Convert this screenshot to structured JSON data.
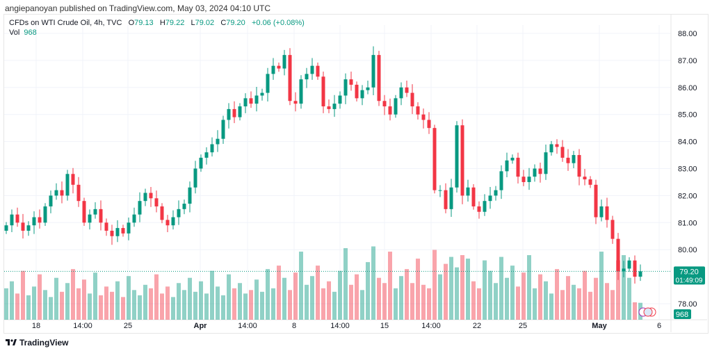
{
  "header": {
    "published": "angiepanoyan published on TradingView.com, May 03, 2024 04:10 UTC"
  },
  "legend": {
    "symbol": "CFDs on WTI Crude Oil, 4h, TVC",
    "o_label": "O",
    "o": "79.13",
    "h_label": "H",
    "h": "79.22",
    "l_label": "L",
    "l": "79.02",
    "c_label": "C",
    "c": "79.20",
    "change": "+0.06 (+0.08%)",
    "vol_label": "Vol",
    "vol": "968"
  },
  "price_tag": {
    "price": "79.20",
    "countdown": "01:49:09"
  },
  "vol_tag": "968",
  "footer": {
    "brand": "TradingView"
  },
  "colors": {
    "up": "#089981",
    "down": "#f23645"
  },
  "chart_data": {
    "type": "candlestick",
    "title": "CFDs on WTI Crude Oil, 4h, TVC",
    "ylim": [
      77.7,
      88.3
    ],
    "y_ticks": [
      "78.00",
      "80.00",
      "81.00",
      "82.00",
      "83.00",
      "84.00",
      "85.00",
      "86.00",
      "87.00",
      "88.00"
    ],
    "x_ticks": [
      "18",
      "14:00",
      "25",
      "Apr",
      "14:00",
      "8",
      "14:00",
      "15",
      "14:00",
      "22",
      "25",
      "May",
      "6"
    ],
    "close": [
      80.9,
      81.3,
      81.0,
      80.7,
      80.9,
      81.2,
      81.0,
      81.6,
      82.0,
      82.2,
      82.0,
      82.8,
      82.4,
      81.8,
      81.0,
      81.3,
      81.5,
      81.0,
      80.7,
      80.5,
      80.8,
      80.6,
      81.0,
      81.3,
      81.8,
      82.1,
      81.9,
      81.6,
      81.1,
      80.9,
      81.2,
      81.5,
      81.7,
      82.3,
      83.0,
      83.4,
      83.6,
      83.9,
      84.1,
      84.8,
      85.2,
      84.9,
      85.3,
      85.6,
      85.4,
      85.7,
      85.8,
      86.5,
      86.8,
      86.7,
      87.2,
      85.5,
      85.4,
      86.3,
      86.5,
      86.8,
      86.4,
      85.3,
      85.2,
      85.4,
      85.7,
      86.3,
      86.1,
      85.6,
      85.9,
      86.0,
      87.2,
      85.5,
      85.3,
      85.0,
      85.6,
      86.0,
      85.8,
      85.3,
      85.0,
      84.8,
      84.5,
      82.2,
      82.2,
      81.5,
      82.3,
      84.6,
      82.0,
      82.3,
      81.6,
      81.4,
      81.8,
      82.0,
      82.2,
      82.9,
      83.3,
      83.4,
      82.7,
      82.5,
      82.7,
      83.0,
      82.8,
      83.6,
      83.9,
      83.8,
      83.4,
      83.2,
      83.5,
      82.7,
      82.6,
      82.4,
      81.2,
      81.6,
      81.1,
      80.4,
      79.2,
      79.3,
      79.6,
      79.0,
      79.2
    ],
    "volume": [
      1800,
      2200,
      1500,
      2800,
      1400,
      1900,
      2600,
      1700,
      1300,
      2400,
      1600,
      2100,
      2900,
      1800,
      2300,
      1500,
      2700,
      1400,
      1900,
      1600,
      2200,
      1300,
      2500,
      1700,
      1400,
      2000,
      1800,
      2600,
      1500,
      1900,
      1300,
      2100,
      1700,
      2400,
      1600,
      2200,
      1500,
      2800,
      1900,
      1400,
      2600,
      1800,
      2100,
      1500,
      1700,
      2300,
      1600,
      2900,
      1800,
      3100,
      2400,
      1700,
      2700,
      3900,
      2000,
      2500,
      3100,
      1800,
      2200,
      1600,
      2800,
      4100,
      2000,
      2600,
      1700,
      3300,
      4200,
      2400,
      2100,
      3900,
      1800,
      2500,
      2900,
      2100,
      3500,
      2000,
      1800,
      4000,
      2600,
      3200,
      3600,
      3000,
      3700,
      3500,
      2200,
      1800,
      3400,
      2800,
      2100,
      3600,
      2400,
      3100,
      1900,
      2700,
      3700,
      1800,
      2600,
      2200,
      1500,
      2900,
      1700,
      2500,
      2000,
      1800,
      2800,
      1600,
      2400,
      3900,
      2100,
      1700,
      3400,
      3700,
      2400,
      1000,
      968
    ]
  }
}
